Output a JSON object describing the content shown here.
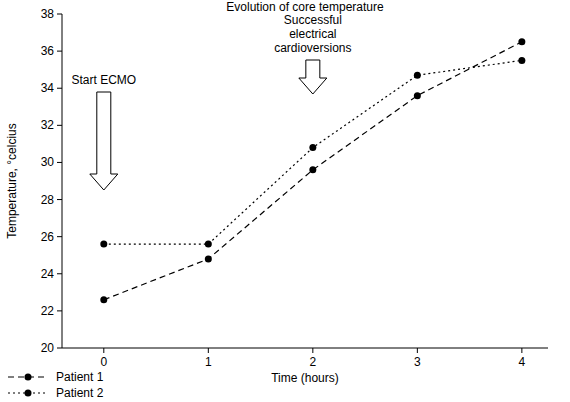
{
  "chart_data": {
    "type": "line",
    "title": "Evolution of core temperature",
    "x_label": "Time (hours)",
    "y_label": "Temperature, °celcius",
    "x": [
      0,
      1,
      2,
      3,
      4
    ],
    "series": [
      {
        "name": "Patient 1",
        "color": "#000000",
        "line_style": "dashed",
        "marker": "circle",
        "values": [
          22.6,
          24.8,
          29.6,
          33.6,
          36.5
        ]
      },
      {
        "name": "Patient 2",
        "color": "#000000",
        "line_style": "dotted",
        "marker": "circle",
        "values": [
          25.6,
          25.6,
          30.8,
          34.7,
          35.5
        ]
      }
    ],
    "xlim": [
      -0.4,
      4.25
    ],
    "xticks": [
      0,
      1,
      2,
      3,
      4
    ],
    "ylim": [
      20,
      38
    ],
    "yticks": [
      20,
      22,
      24,
      26,
      28,
      30,
      32,
      34,
      36,
      38
    ],
    "grid": false,
    "legend": "bottom-left",
    "annotations": [
      {
        "text": "Start ECMO",
        "x": 0
      },
      {
        "text": "Successful\nelectrical\ncardioversions",
        "x": 2
      }
    ]
  }
}
